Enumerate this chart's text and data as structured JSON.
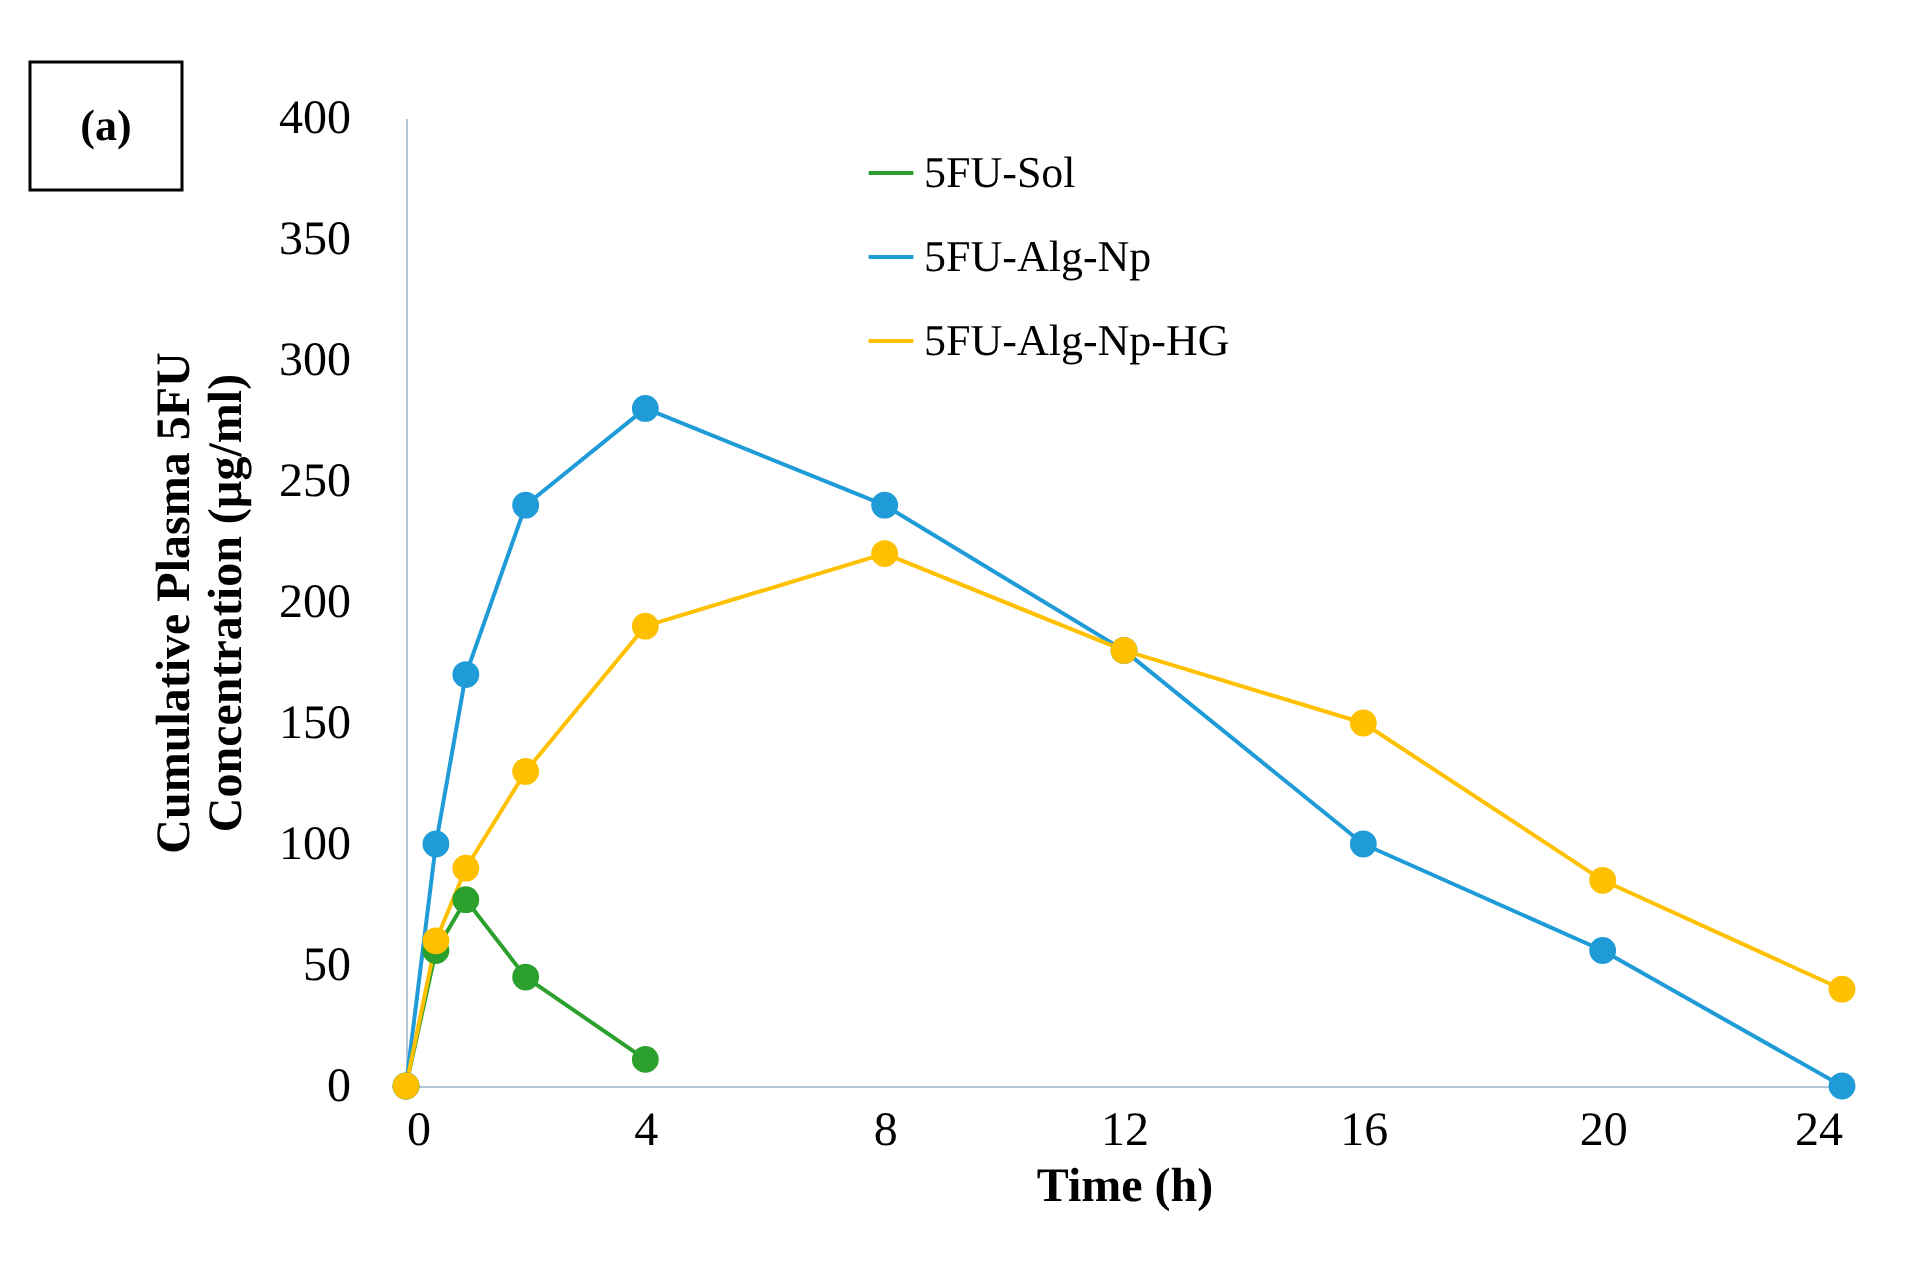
{
  "chart_data": {
    "type": "line",
    "xlabel": "Time (h)",
    "ylabel": "Cumulative Plasma 5FU Concentration (µg/ml)",
    "annotations": [
      "(a)"
    ],
    "xlim": [
      0,
      24
    ],
    "xticks": [
      0,
      4,
      8,
      12,
      16,
      20,
      24
    ],
    "ylim": [
      0,
      400
    ],
    "yticks": [
      0,
      50,
      100,
      150,
      200,
      250,
      300,
      350,
      400
    ],
    "grid": false,
    "legend": "top",
    "marker": "circle",
    "line_style": "solid",
    "series": [
      {
        "name": "5FU-Sol",
        "color": "#2ca02c",
        "x": [
          0,
          0.5,
          1,
          2,
          4
        ],
        "values": [
          0,
          56,
          77,
          45,
          11
        ]
      },
      {
        "name": "5FU-Alg-Np",
        "color": "#1f9bd7",
        "x": [
          0,
          0.5,
          1,
          2,
          4,
          8,
          12,
          16,
          20,
          24
        ],
        "values": [
          0,
          100,
          170,
          240,
          280,
          240,
          180,
          100,
          56,
          0
        ]
      },
      {
        "name": "5FU-Alg-Np-HG",
        "color": "#ffc000",
        "x": [
          0,
          0.5,
          1,
          2,
          4,
          8,
          12,
          16,
          20,
          24
        ],
        "values": [
          0,
          60,
          90,
          130,
          190,
          220,
          180,
          150,
          85,
          40
        ]
      }
    ]
  }
}
